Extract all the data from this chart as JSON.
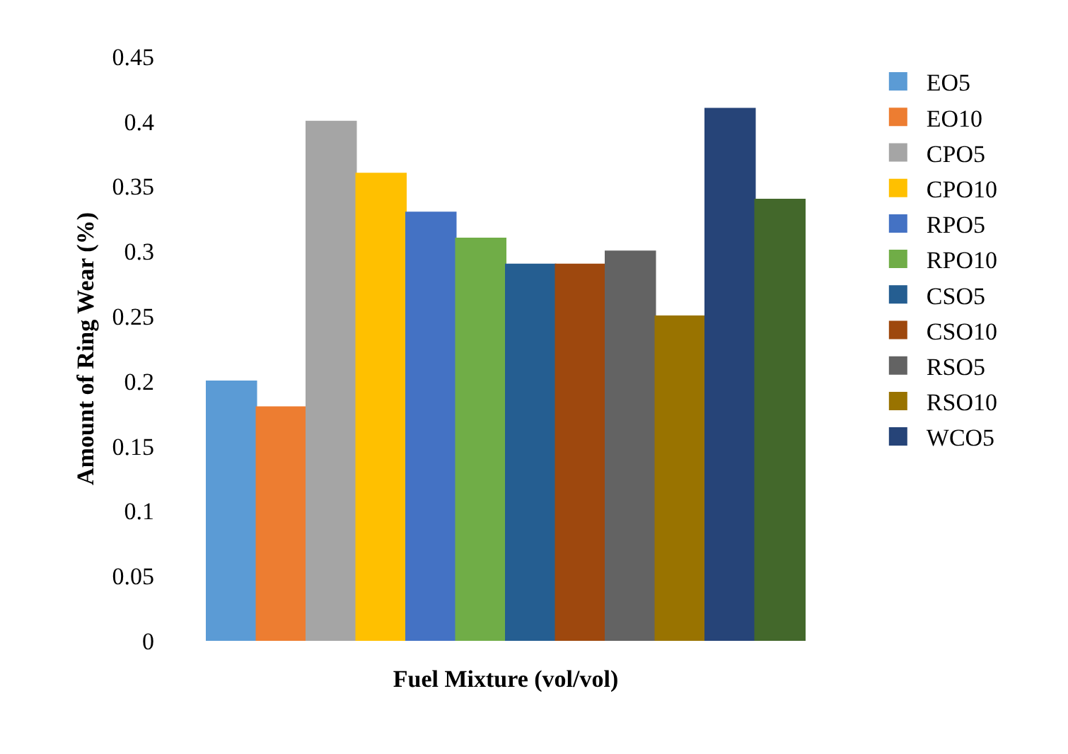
{
  "chart_data": {
    "type": "bar",
    "xlabel": "Fuel Mixture (vol/vol)",
    "ylabel": "Amount of Ring Wear (%)",
    "categories": [
      null
    ],
    "series": [
      {
        "name": "EO5",
        "color": "#5b9bd5",
        "values": [
          0.2
        ]
      },
      {
        "name": "EO10",
        "color": "#ed7d31",
        "values": [
          0.18
        ]
      },
      {
        "name": "CPO5",
        "color": "#a5a5a5",
        "values": [
          0.4
        ]
      },
      {
        "name": "CPO10",
        "color": "#ffc000",
        "values": [
          0.36
        ]
      },
      {
        "name": "RPO5",
        "color": "#4472c4",
        "values": [
          0.33
        ]
      },
      {
        "name": "RPO10",
        "color": "#70ad47",
        "values": [
          0.31
        ]
      },
      {
        "name": "CSO5",
        "color": "#255e91",
        "values": [
          0.29
        ]
      },
      {
        "name": "CSO10",
        "color": "#9e480e",
        "values": [
          0.29
        ]
      },
      {
        "name": "RSO5",
        "color": "#636363",
        "values": [
          0.3
        ]
      },
      {
        "name": "RSO10",
        "color": "#997300",
        "values": [
          0.25
        ]
      },
      {
        "name": "WCO5",
        "color": "#264478",
        "values": [
          0.41
        ]
      },
      {
        "color": "#43682b",
        "values": [
          0.34
        ]
      }
    ],
    "ylim": [
      0,
      0.45
    ],
    "yticks": [
      0,
      0.05,
      0.1,
      0.15,
      0.2,
      0.25,
      0.3,
      0.35,
      0.4,
      0.45
    ],
    "grid": false,
    "legend": "right"
  }
}
